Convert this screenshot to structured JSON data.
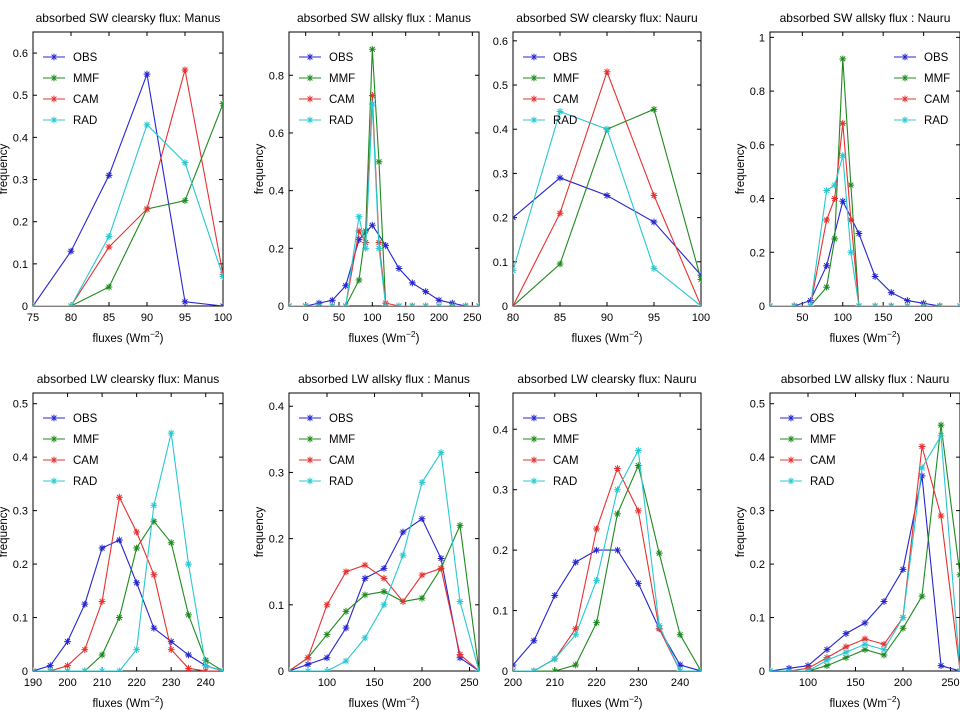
{
  "colors": {
    "OBS": "#2525d0",
    "MMF": "#1e8a1e",
    "CAM": "#e83030",
    "RAD": "#28c8d0"
  },
  "chart_data": [
    {
      "type": "line",
      "title": "absorbed SW clearsky flux: Manus",
      "xlabel": "fluxes (Wm",
      "xlabel_sup": "−2",
      "xlabel_close": ")",
      "ylabel": "frequency",
      "xlim": [
        75,
        100
      ],
      "ylim": [
        0,
        0.65
      ],
      "xticks": [
        75,
        80,
        85,
        90,
        95,
        100
      ],
      "yticks": [
        0,
        0.1,
        0.2,
        0.3,
        0.4,
        0.5,
        0.6
      ],
      "legend_position": "top-left",
      "series": [
        {
          "name": "OBS",
          "x": [
            75,
            80,
            85,
            90,
            95,
            100
          ],
          "y": [
            0.0,
            0.13,
            0.31,
            0.55,
            0.01,
            0.0
          ]
        },
        {
          "name": "MMF",
          "x": [
            75,
            80,
            85,
            90,
            95,
            100
          ],
          "y": [
            0.0,
            0.0,
            0.045,
            0.23,
            0.25,
            0.48
          ]
        },
        {
          "name": "CAM",
          "x": [
            75,
            80,
            85,
            90,
            95,
            100
          ],
          "y": [
            0.0,
            0.0,
            0.14,
            0.23,
            0.56,
            0.075
          ]
        },
        {
          "name": "RAD",
          "x": [
            75,
            80,
            85,
            90,
            95,
            100
          ],
          "y": [
            0.0,
            0.0,
            0.165,
            0.43,
            0.34,
            0.07
          ]
        }
      ]
    },
    {
      "type": "line",
      "title": "absorbed SW allsky flux : Manus",
      "xlabel": "fluxes (Wm",
      "xlabel_sup": "−2",
      "xlabel_close": ")",
      "ylabel": "frequency",
      "xlim": [
        -25,
        260
      ],
      "ylim": [
        0,
        0.95
      ],
      "xticks": [
        0,
        50,
        100,
        150,
        200,
        250
      ],
      "yticks": [
        0,
        0.2,
        0.4,
        0.6,
        0.8
      ],
      "legend_position": "top-left",
      "series": [
        {
          "name": "OBS",
          "x": [
            -25,
            0,
            20,
            40,
            60,
            80,
            100,
            120,
            140,
            160,
            180,
            200,
            220,
            240,
            260
          ],
          "y": [
            0.0,
            0.0,
            0.01,
            0.02,
            0.07,
            0.23,
            0.28,
            0.21,
            0.13,
            0.08,
            0.05,
            0.02,
            0.01,
            0.0,
            0.0
          ]
        },
        {
          "name": "MMF",
          "x": [
            -25,
            0,
            20,
            40,
            60,
            80,
            90,
            100,
            110,
            120,
            140,
            160,
            180,
            200,
            220,
            240,
            260
          ],
          "y": [
            0.0,
            0.0,
            0.0,
            0.0,
            0.0,
            0.09,
            0.26,
            0.89,
            0.5,
            0.0,
            0.0,
            0.0,
            0.0,
            0.0,
            0.0,
            0.0,
            0.0
          ]
        },
        {
          "name": "CAM",
          "x": [
            -25,
            0,
            20,
            40,
            60,
            80,
            90,
            100,
            110,
            120,
            140,
            160,
            180,
            200,
            220,
            240,
            260
          ],
          "y": [
            0.0,
            0.0,
            0.0,
            0.0,
            0.0,
            0.26,
            0.22,
            0.73,
            0.22,
            0.01,
            0.0,
            0.0,
            0.0,
            0.0,
            0.0,
            0.0,
            0.0
          ]
        },
        {
          "name": "RAD",
          "x": [
            -25,
            0,
            20,
            40,
            60,
            80,
            90,
            100,
            110,
            120,
            140,
            160,
            180,
            200,
            220,
            240,
            260
          ],
          "y": [
            0.0,
            0.0,
            0.0,
            0.0,
            0.0,
            0.31,
            0.2,
            0.7,
            0.2,
            0.0,
            0.0,
            0.0,
            0.0,
            0.0,
            0.0,
            0.0,
            0.0
          ]
        }
      ]
    },
    {
      "type": "line",
      "title": "absorbed SW clearsky flux: Nauru",
      "xlabel": "fluxes (Wm",
      "xlabel_sup": "−2",
      "xlabel_close": ")",
      "ylabel": "",
      "xlim": [
        80,
        100
      ],
      "ylim": [
        0,
        0.62
      ],
      "xticks": [
        80,
        85,
        90,
        95,
        100
      ],
      "yticks": [
        0,
        0.1,
        0.2,
        0.3,
        0.4,
        0.5,
        0.6
      ],
      "legend_position": "top-left",
      "series": [
        {
          "name": "OBS",
          "x": [
            80,
            85,
            90,
            95,
            100
          ],
          "y": [
            0.2,
            0.29,
            0.25,
            0.19,
            0.07
          ]
        },
        {
          "name": "MMF",
          "x": [
            80,
            85,
            90,
            95,
            100
          ],
          "y": [
            0.0,
            0.095,
            0.4,
            0.445,
            0.06
          ]
        },
        {
          "name": "CAM",
          "x": [
            80,
            85,
            90,
            95,
            100
          ],
          "y": [
            0.0,
            0.21,
            0.53,
            0.25,
            0.0
          ]
        },
        {
          "name": "RAD",
          "x": [
            80,
            85,
            90,
            95,
            100
          ],
          "y": [
            0.08,
            0.44,
            0.4,
            0.085,
            0.0
          ]
        }
      ]
    },
    {
      "type": "line",
      "title": "absorbed SW allsky flux : Nauru",
      "xlabel": "fluxes (Wm",
      "xlabel_sup": "−2",
      "xlabel_close": ")",
      "ylabel": "frequency",
      "xlim": [
        10,
        245
      ],
      "ylim": [
        0,
        1.02
      ],
      "xticks": [
        50,
        100,
        150,
        200
      ],
      "yticks": [
        0,
        0.2,
        0.4,
        0.6,
        0.8,
        1
      ],
      "legend_position": "top-right",
      "series": [
        {
          "name": "OBS",
          "x": [
            10,
            40,
            60,
            80,
            100,
            120,
            140,
            160,
            180,
            200,
            220,
            245
          ],
          "y": [
            0.0,
            0.0,
            0.02,
            0.15,
            0.39,
            0.27,
            0.11,
            0.05,
            0.02,
            0.01,
            0.0,
            0.0
          ]
        },
        {
          "name": "MMF",
          "x": [
            10,
            40,
            60,
            80,
            90,
            100,
            110,
            120,
            140,
            160,
            180,
            200,
            220,
            245
          ],
          "y": [
            0.0,
            0.0,
            0.0,
            0.07,
            0.25,
            0.92,
            0.45,
            0.0,
            0.0,
            0.0,
            0.0,
            0.0,
            0.0,
            0.0
          ]
        },
        {
          "name": "CAM",
          "x": [
            10,
            40,
            60,
            80,
            90,
            100,
            110,
            120,
            140,
            160,
            180,
            200,
            220,
            245
          ],
          "y": [
            0.0,
            0.0,
            0.0,
            0.32,
            0.4,
            0.68,
            0.32,
            0.0,
            0.0,
            0.0,
            0.0,
            0.0,
            0.0,
            0.0
          ]
        },
        {
          "name": "RAD",
          "x": [
            10,
            40,
            60,
            80,
            90,
            100,
            110,
            120,
            140,
            160,
            180,
            200,
            220,
            245
          ],
          "y": [
            0.0,
            0.0,
            0.0,
            0.43,
            0.45,
            0.56,
            0.2,
            0.0,
            0.0,
            0.0,
            0.0,
            0.0,
            0.0,
            0.0
          ]
        }
      ]
    },
    {
      "type": "line",
      "title": "absorbed LW clearsky flux: Manus",
      "xlabel": "fluxes (Wm",
      "xlabel_sup": "−2",
      "xlabel_close": ")",
      "ylabel": "frequency",
      "xlim": [
        190,
        245
      ],
      "ylim": [
        0,
        0.52
      ],
      "xticks": [
        190,
        200,
        210,
        220,
        230,
        240
      ],
      "yticks": [
        0,
        0.1,
        0.2,
        0.3,
        0.4,
        0.5
      ],
      "legend_position": "top-left",
      "series": [
        {
          "name": "OBS",
          "x": [
            190,
            195,
            200,
            205,
            210,
            215,
            220,
            225,
            230,
            235,
            240,
            245
          ],
          "y": [
            0.0,
            0.01,
            0.055,
            0.125,
            0.23,
            0.245,
            0.165,
            0.08,
            0.055,
            0.03,
            0.01,
            0.0
          ]
        },
        {
          "name": "MMF",
          "x": [
            190,
            195,
            200,
            205,
            210,
            215,
            220,
            225,
            230,
            235,
            240,
            245
          ],
          "y": [
            0.0,
            0.0,
            0.0,
            0.0,
            0.03,
            0.1,
            0.23,
            0.28,
            0.24,
            0.105,
            0.02,
            0.0
          ]
        },
        {
          "name": "CAM",
          "x": [
            190,
            195,
            200,
            205,
            210,
            215,
            220,
            225,
            230,
            235,
            240,
            245
          ],
          "y": [
            0.0,
            0.0,
            0.01,
            0.04,
            0.13,
            0.325,
            0.26,
            0.18,
            0.04,
            0.005,
            0.0,
            0.0
          ]
        },
        {
          "name": "RAD",
          "x": [
            190,
            195,
            200,
            205,
            210,
            215,
            220,
            225,
            230,
            235,
            240,
            245
          ],
          "y": [
            0.0,
            0.0,
            0.0,
            0.0,
            0.0,
            0.0,
            0.04,
            0.31,
            0.445,
            0.2,
            0.01,
            0.0
          ]
        }
      ]
    },
    {
      "type": "line",
      "title": "absorbed LW allsky flux : Manus",
      "xlabel": "fluxes (Wm",
      "xlabel_sup": "−2",
      "xlabel_close": ")",
      "ylabel": "frequency",
      "xlim": [
        60,
        260
      ],
      "ylim": [
        0,
        0.42
      ],
      "xticks": [
        100,
        150,
        200,
        250
      ],
      "yticks": [
        0,
        0.1,
        0.2,
        0.3,
        0.4
      ],
      "legend_position": "top-left",
      "series": [
        {
          "name": "OBS",
          "x": [
            60,
            80,
            100,
            120,
            140,
            160,
            180,
            200,
            220,
            240,
            260
          ],
          "y": [
            0.0,
            0.01,
            0.02,
            0.065,
            0.14,
            0.155,
            0.21,
            0.23,
            0.17,
            0.02,
            0.0
          ]
        },
        {
          "name": "MMF",
          "x": [
            60,
            80,
            100,
            120,
            140,
            160,
            180,
            200,
            220,
            240,
            260
          ],
          "y": [
            0.0,
            0.02,
            0.055,
            0.09,
            0.115,
            0.12,
            0.105,
            0.11,
            0.155,
            0.22,
            0.0
          ]
        },
        {
          "name": "CAM",
          "x": [
            60,
            80,
            100,
            120,
            140,
            160,
            180,
            200,
            220,
            240,
            260
          ],
          "y": [
            0.0,
            0.02,
            0.1,
            0.15,
            0.16,
            0.14,
            0.105,
            0.145,
            0.155,
            0.025,
            0.0
          ]
        },
        {
          "name": "RAD",
          "x": [
            60,
            80,
            100,
            120,
            140,
            160,
            180,
            200,
            220,
            240,
            260
          ],
          "y": [
            0.0,
            0.0,
            0.0,
            0.015,
            0.05,
            0.1,
            0.175,
            0.285,
            0.33,
            0.105,
            0.0
          ]
        }
      ]
    },
    {
      "type": "line",
      "title": "absorbed LW clearsky flux: Nauru",
      "xlabel": "fluxes (Wm",
      "xlabel_sup": "−2",
      "xlabel_close": ")",
      "ylabel": "",
      "xlim": [
        200,
        245
      ],
      "ylim": [
        0,
        0.46
      ],
      "xticks": [
        200,
        210,
        220,
        230,
        240
      ],
      "yticks": [
        0,
        0.1,
        0.2,
        0.3,
        0.4
      ],
      "legend_position": "top-left",
      "series": [
        {
          "name": "OBS",
          "x": [
            200,
            205,
            210,
            215,
            220,
            225,
            230,
            235,
            240,
            245
          ],
          "y": [
            0.01,
            0.05,
            0.125,
            0.18,
            0.2,
            0.2,
            0.145,
            0.07,
            0.01,
            0.0
          ]
        },
        {
          "name": "MMF",
          "x": [
            200,
            205,
            210,
            215,
            220,
            225,
            230,
            235,
            240,
            245
          ],
          "y": [
            0.0,
            0.0,
            0.0,
            0.01,
            0.08,
            0.26,
            0.34,
            0.195,
            0.06,
            0.0
          ]
        },
        {
          "name": "CAM",
          "x": [
            200,
            205,
            210,
            215,
            220,
            225,
            230,
            235,
            240,
            245
          ],
          "y": [
            0.0,
            0.0,
            0.02,
            0.07,
            0.235,
            0.335,
            0.265,
            0.07,
            0.0,
            0.0
          ]
        },
        {
          "name": "RAD",
          "x": [
            200,
            205,
            210,
            215,
            220,
            225,
            230,
            235,
            240,
            245
          ],
          "y": [
            0.0,
            0.0,
            0.02,
            0.06,
            0.15,
            0.3,
            0.365,
            0.075,
            0.0,
            0.0
          ]
        }
      ]
    },
    {
      "type": "line",
      "title": "absorbed LW allsky flux : Nauru",
      "xlabel": "fluxes (Wm",
      "xlabel_sup": "−2",
      "xlabel_close": ")",
      "ylabel": "frequency",
      "xlim": [
        60,
        260
      ],
      "ylim": [
        0,
        0.52
      ],
      "xticks": [
        100,
        150,
        200,
        250
      ],
      "yticks": [
        0,
        0.1,
        0.2,
        0.3,
        0.4,
        0.5
      ],
      "legend_position": "top-left",
      "series": [
        {
          "name": "OBS",
          "x": [
            60,
            80,
            100,
            120,
            140,
            160,
            180,
            200,
            220,
            240,
            260
          ],
          "y": [
            0.0,
            0.005,
            0.01,
            0.04,
            0.07,
            0.09,
            0.13,
            0.19,
            0.365,
            0.01,
            0.0
          ]
        },
        {
          "name": "MMF",
          "x": [
            60,
            80,
            100,
            120,
            140,
            160,
            180,
            200,
            220,
            240,
            260
          ],
          "y": [
            0.0,
            0.0,
            0.0,
            0.01,
            0.025,
            0.04,
            0.03,
            0.08,
            0.14,
            0.46,
            0.18
          ]
        },
        {
          "name": "CAM",
          "x": [
            60,
            80,
            100,
            120,
            140,
            160,
            180,
            200,
            220,
            240,
            260
          ],
          "y": [
            0.0,
            0.0,
            0.005,
            0.025,
            0.045,
            0.06,
            0.05,
            0.1,
            0.42,
            0.29,
            0.0
          ]
        },
        {
          "name": "RAD",
          "x": [
            60,
            80,
            100,
            120,
            140,
            160,
            180,
            200,
            220,
            240,
            260
          ],
          "y": [
            0.0,
            0.0,
            0.0,
            0.02,
            0.035,
            0.05,
            0.04,
            0.1,
            0.38,
            0.44,
            0.0
          ]
        }
      ]
    }
  ]
}
